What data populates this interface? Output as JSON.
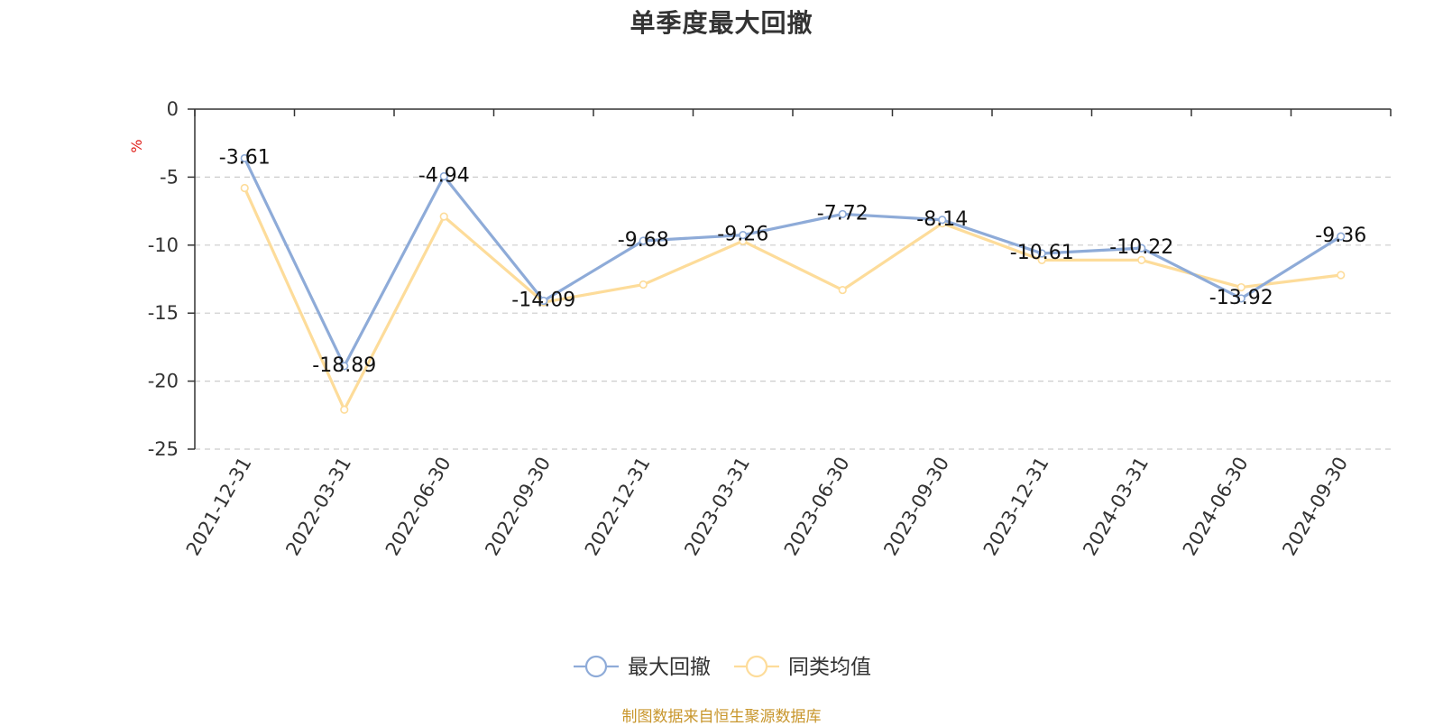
{
  "chart_data": {
    "type": "line",
    "title": "单季度最大回撤",
    "ylabel": "%",
    "ylim": [
      -25,
      0
    ],
    "yticks": [
      0,
      -5,
      -10,
      -15,
      -20,
      -25
    ],
    "grid": "horizontal dashed",
    "legend_position": "bottom-center",
    "categories": [
      "2021-12-31",
      "2022-03-31",
      "2022-06-30",
      "2022-09-30",
      "2022-12-31",
      "2023-03-31",
      "2023-06-30",
      "2023-09-30",
      "2023-12-31",
      "2024-03-31",
      "2024-06-30",
      "2024-09-30"
    ],
    "series": [
      {
        "name": "最大回撤",
        "color": "#8eabd8",
        "values": [
          -3.61,
          -18.89,
          -4.94,
          -14.09,
          -9.68,
          -9.26,
          -7.72,
          -8.14,
          -10.61,
          -10.22,
          -13.92,
          -9.36
        ],
        "labels": [
          "-3.61",
          "-18.89",
          "-4.94",
          "-14.09",
          "-9.68",
          "-9.26",
          "-7.72",
          "-8.14",
          "-10.61",
          "-10.22",
          "-13.92",
          "-9.36"
        ]
      },
      {
        "name": "同类均值",
        "color": "#fddc9a",
        "values": [
          -5.8,
          -22.1,
          -7.9,
          -14.2,
          -12.9,
          -9.7,
          -13.3,
          -8.4,
          -11.1,
          -11.1,
          -13.1,
          -12.2
        ]
      }
    ],
    "source_note": "制图数据来自恒生聚源数据库"
  },
  "colors": {
    "axis": "#333333",
    "grid": "#cccccc",
    "unit_label": "#e0201b",
    "source_note": "#c8962c"
  }
}
